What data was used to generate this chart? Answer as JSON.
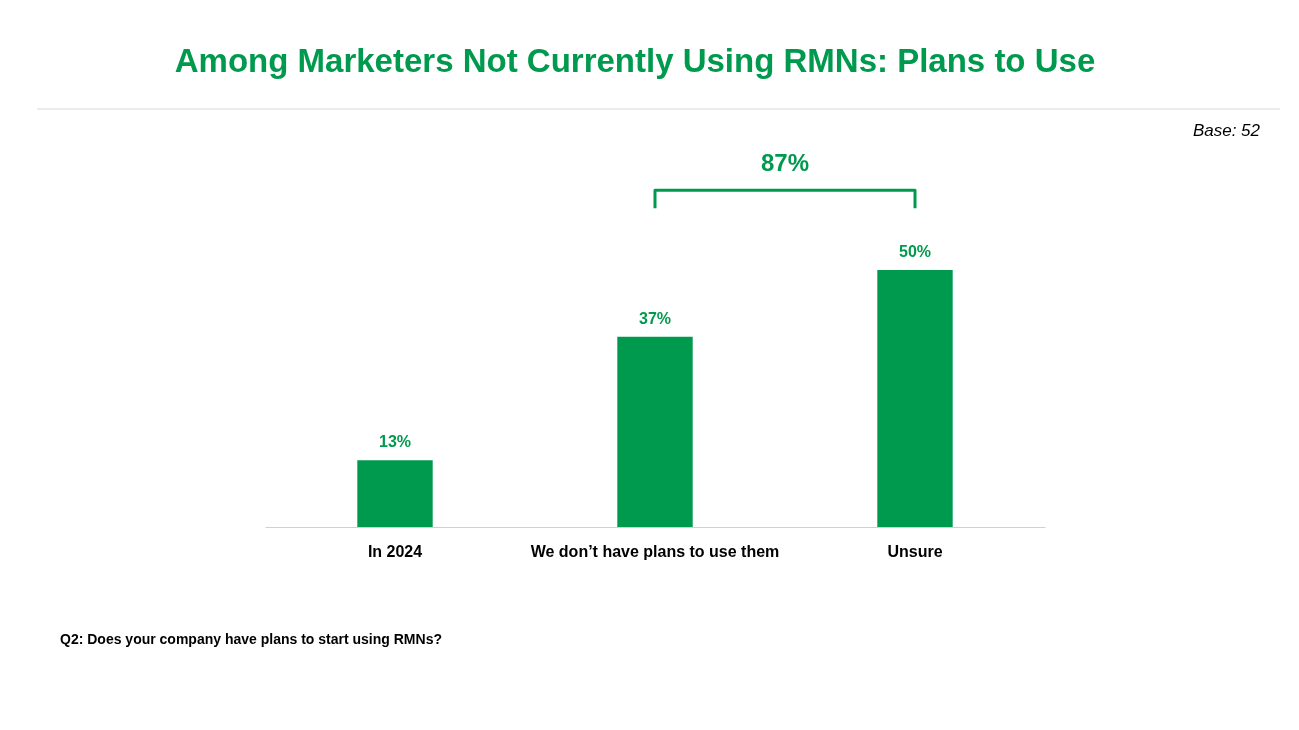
{
  "chart_data": {
    "type": "bar",
    "title": "Among Marketers Not Currently Using RMNs: Plans to Use",
    "categories": [
      "In 2024",
      "We don’t have plans to use them",
      "Unsure"
    ],
    "values": [
      13,
      37,
      50
    ],
    "value_labels": [
      "13%",
      "37%",
      "50%"
    ],
    "color": "#009a4e",
    "grid": false,
    "annotations": [
      "87%",
      "Base: 52",
      "Q2: Does your company have plans to start using RMNs?"
    ]
  }
}
